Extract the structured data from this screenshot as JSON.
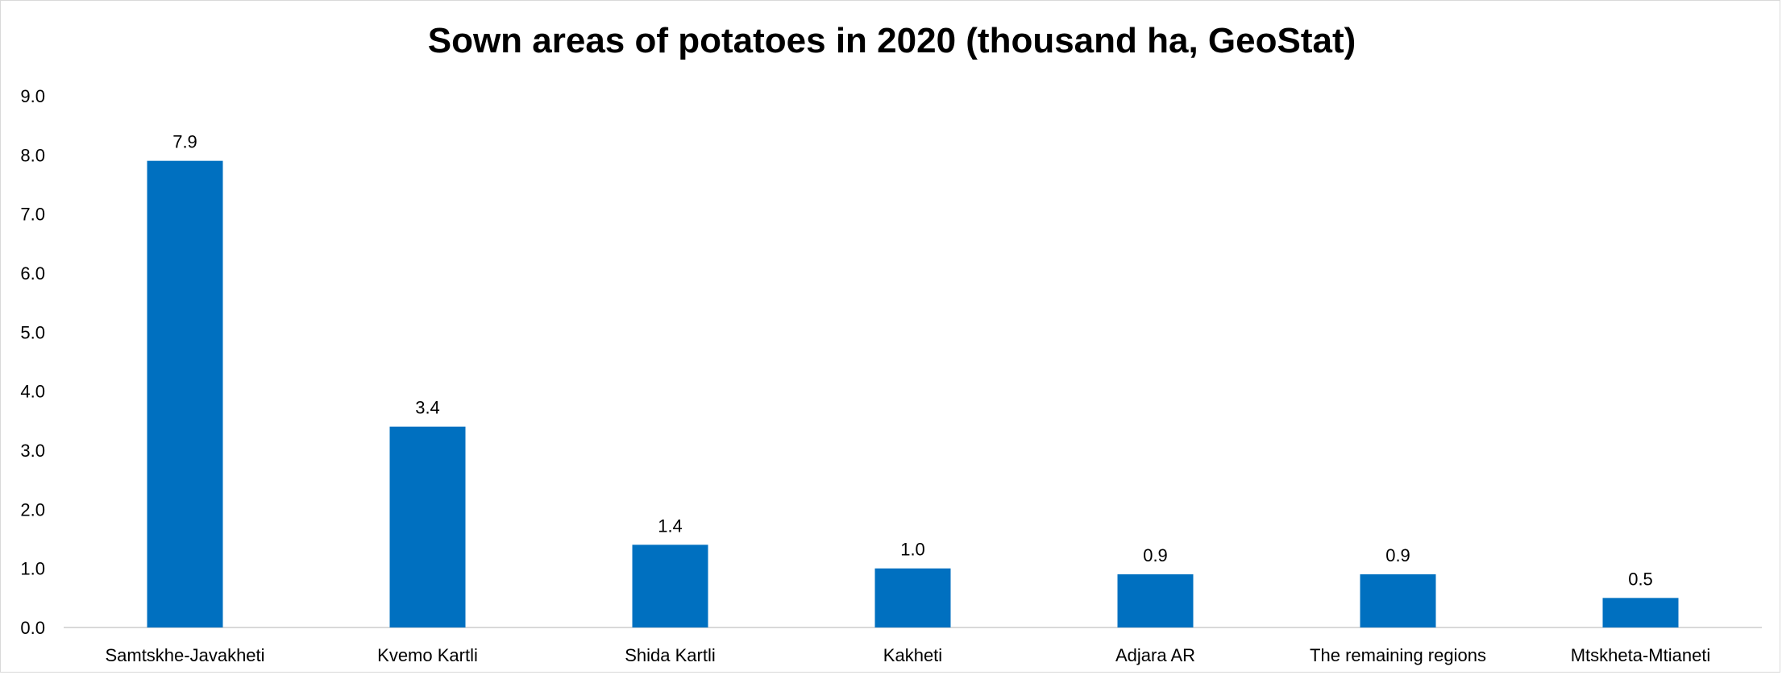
{
  "chart_data": {
    "type": "bar",
    "title": "Sown areas of potatoes in 2020 (thousand ha, GeoStat)",
    "xlabel": "",
    "ylabel": "",
    "categories": [
      "Samtskhe-Javakheti",
      "Kvemo Kartli",
      "Shida Kartli",
      "Kakheti",
      "Adjara AR",
      "The remaining regions",
      "Mtskheta-Mtianeti"
    ],
    "values": [
      7.9,
      3.4,
      1.4,
      1.0,
      0.9,
      0.9,
      0.5
    ],
    "value_labels": [
      "7.9",
      "3.4",
      "1.4",
      "1.0",
      "0.9",
      "0.9",
      "0.5"
    ],
    "ylim": [
      0,
      9
    ],
    "yticks": [
      0,
      1,
      2,
      3,
      4,
      5,
      6,
      7,
      8,
      9
    ],
    "ytick_labels": [
      "0.0",
      "1.0",
      "2.0",
      "3.0",
      "4.0",
      "5.0",
      "6.0",
      "7.0",
      "8.0",
      "9.0"
    ],
    "grid": false,
    "legend": "none",
    "bar_color": "#0070C0",
    "axis_color": "#d9d9d9"
  }
}
